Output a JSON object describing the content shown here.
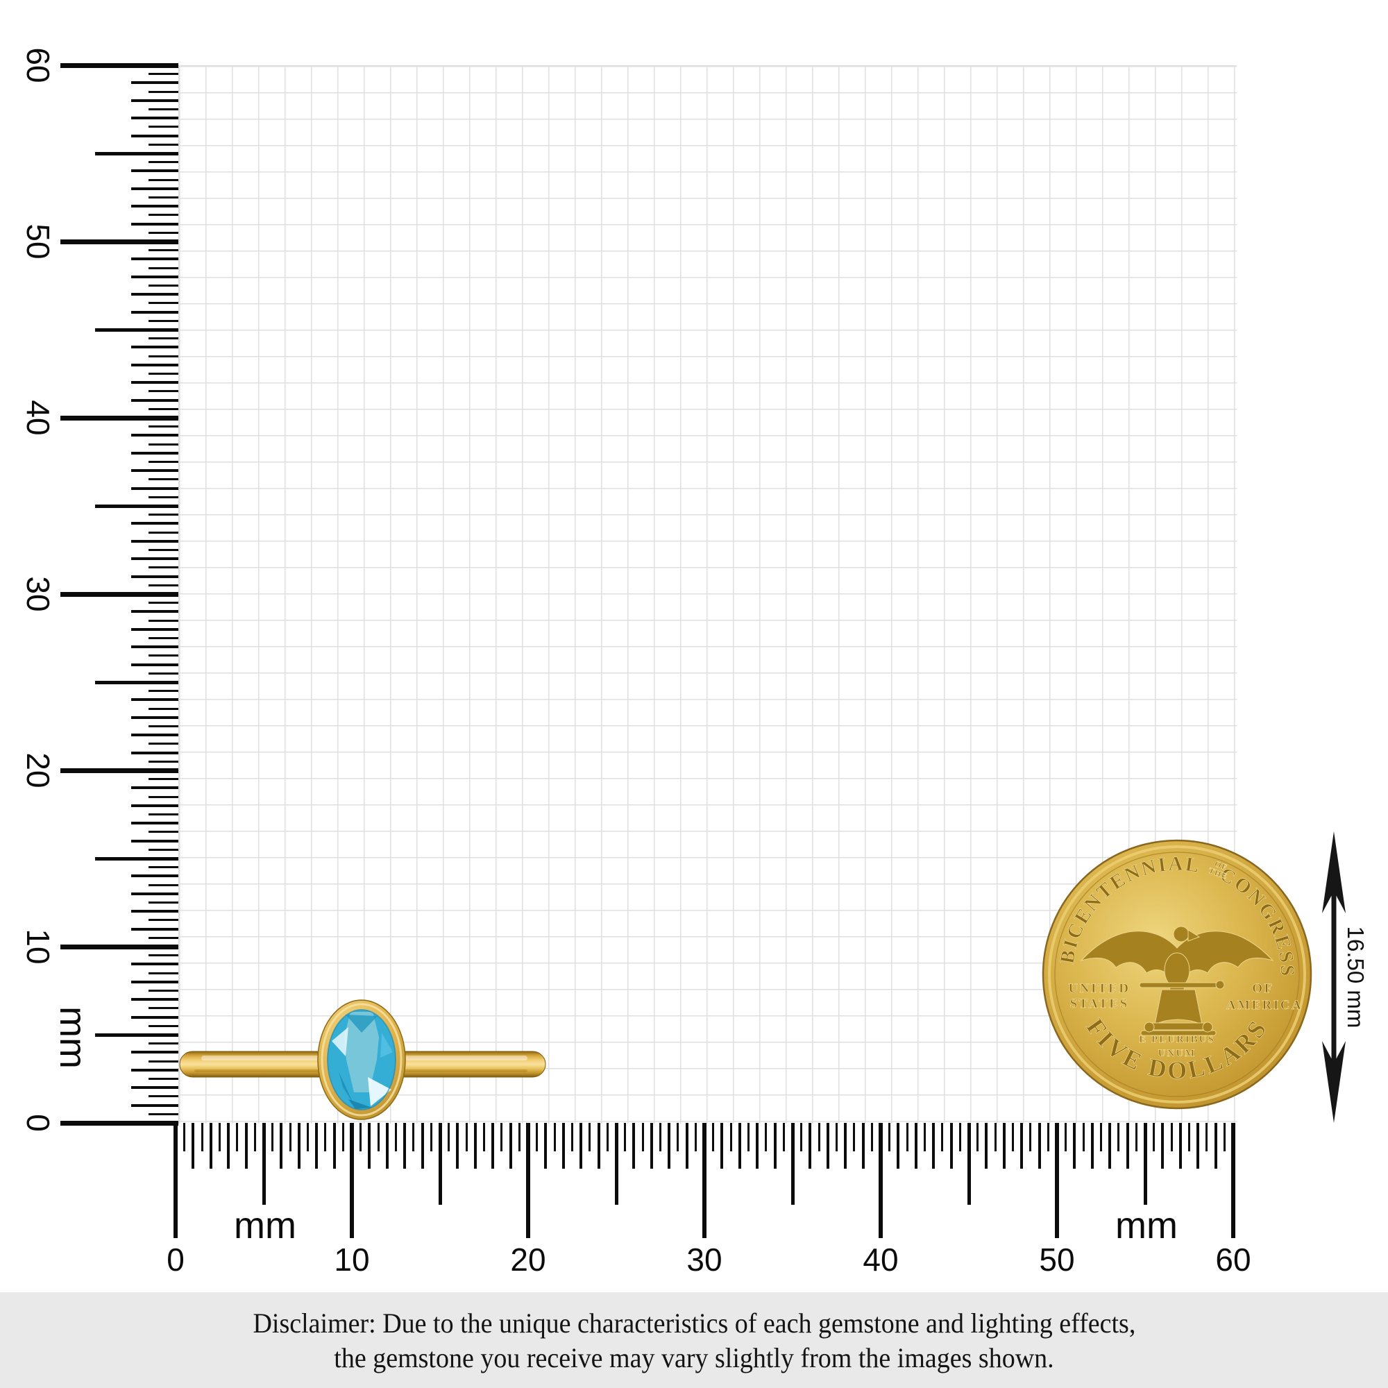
{
  "colors": {
    "paper_background": "#ffffff",
    "grid_line": "#dfdfdf",
    "ruler": "#0b0b0b",
    "gold": "#d4a83c",
    "topaz_blue": "#45b9e0",
    "disclaimer_background": "#e9e9e9",
    "disclaimer_text": "#141414"
  },
  "rulers": {
    "unit": "mm",
    "min_mm": 0,
    "max_mm": 60,
    "tick_step_mm": 0.5,
    "vertical": {
      "labels": [
        "60",
        "50",
        "40",
        "30",
        "20",
        "10",
        "0"
      ],
      "unit_label": "mm"
    },
    "horizontal": {
      "labels": [
        "0",
        "10",
        "20",
        "30",
        "40",
        "50",
        "60"
      ],
      "unit_label_left": "mm",
      "unit_label_right": "mm"
    }
  },
  "ring": {
    "gem": "oval blue topaz",
    "setting": "gold bezel solitaire band"
  },
  "coin": {
    "arc_text_left": "BICENTENNIAL",
    "arc_text_small_top": "OF",
    "arc_text_small_bottom": "THE",
    "arc_text_right": "CONGRESS",
    "left_text_line1": "UNITED",
    "left_text_line2": "STATES",
    "right_text_line1": "OF",
    "right_text_line2": "AMERICA",
    "motto_line1": "E PLURIBUS",
    "motto_line2": "UNUM",
    "bottom_arc_text": "FIVE DOLLARS"
  },
  "dimension_annotation": {
    "label": "16.50 mm"
  },
  "disclaimer": {
    "line1": "Disclaimer: Due to the unique characteristics of each gemstone and lighting effects,",
    "line2": "the gemstone you receive may vary slightly from the images shown."
  }
}
